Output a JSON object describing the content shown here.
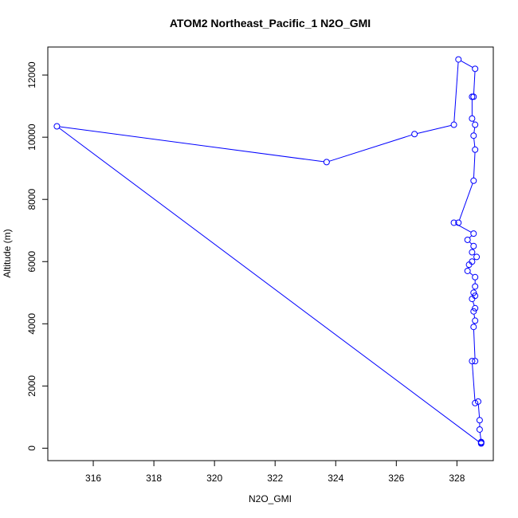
{
  "chart_data": {
    "type": "line",
    "title": "ATOM2 Northeast_Pacific_1 N2O_GMI",
    "xlabel": "N2O_GMI",
    "ylabel": "Altitude (m)",
    "xlim": [
      314.5,
      329.2
    ],
    "ylim": [
      -400,
      12900
    ],
    "x_ticks": [
      316,
      318,
      320,
      322,
      324,
      326,
      328
    ],
    "y_ticks": [
      0,
      2000,
      4000,
      6000,
      8000,
      10000,
      12000
    ],
    "grid": false,
    "legend": "none",
    "series": [
      {
        "color": "#0000ff",
        "points": [
          [
            328.8,
            180
          ],
          [
            328.8,
            200
          ],
          [
            328.75,
            600
          ],
          [
            328.75,
            900
          ],
          [
            328.7,
            1500
          ],
          [
            328.6,
            1450
          ],
          [
            328.5,
            2800
          ],
          [
            328.6,
            2800
          ],
          [
            328.55,
            3900
          ],
          [
            328.6,
            4100
          ],
          [
            328.55,
            4400
          ],
          [
            328.6,
            4500
          ],
          [
            328.5,
            4800
          ],
          [
            328.6,
            4900
          ],
          [
            328.55,
            5000
          ],
          [
            328.6,
            5200
          ],
          [
            328.6,
            5500
          ],
          [
            328.35,
            5700
          ],
          [
            328.4,
            5900
          ],
          [
            328.5,
            6000
          ],
          [
            328.65,
            6150
          ],
          [
            328.5,
            6300
          ],
          [
            328.55,
            6500
          ],
          [
            328.35,
            6700
          ],
          [
            328.55,
            6900
          ],
          [
            327.9,
            7250
          ],
          [
            328.05,
            7250
          ],
          [
            328.55,
            8600
          ],
          [
            328.6,
            9600
          ],
          [
            328.55,
            10050
          ],
          [
            328.6,
            10400
          ],
          [
            328.5,
            10600
          ],
          [
            328.5,
            11300
          ],
          [
            328.55,
            11300
          ],
          [
            328.6,
            12200
          ],
          [
            328.05,
            12500
          ],
          [
            327.9,
            10400
          ],
          [
            326.6,
            10100
          ],
          [
            323.7,
            9200
          ],
          [
            314.8,
            10350
          ],
          [
            328.8,
            150
          ]
        ]
      }
    ]
  }
}
